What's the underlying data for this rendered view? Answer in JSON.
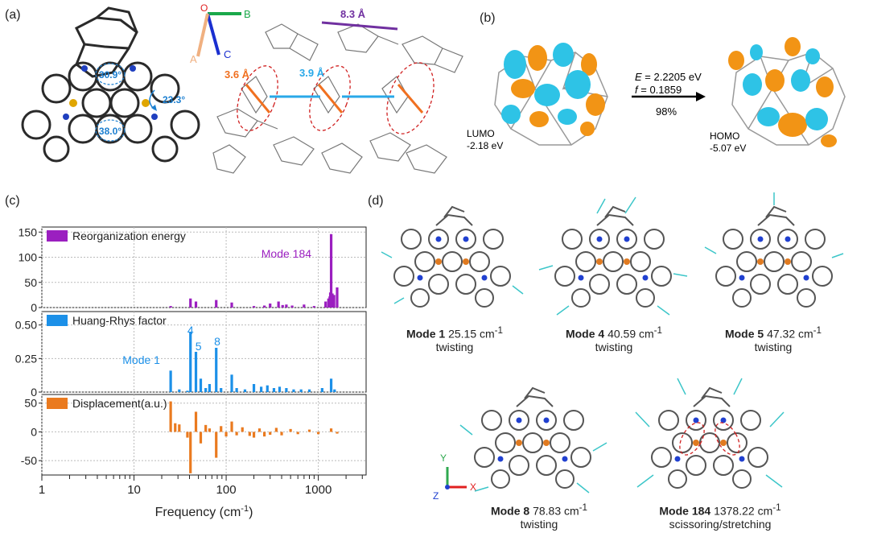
{
  "panels": {
    "a": "(a)",
    "b": "(b)",
    "c": "(c)",
    "d": "(d)"
  },
  "panel_a": {
    "angles": [
      "30.9°",
      "23.3°",
      "38.0°"
    ],
    "axes": {
      "origin": "O",
      "a": "A",
      "b": "B",
      "c": "C"
    },
    "distances": [
      "8.3 Å",
      "3.6 Å",
      "3.9 Å"
    ],
    "colors": {
      "sulfur": "#e0a600",
      "nitrogen": "#1f3fbf",
      "carbon": "#222222",
      "orange_line": "#f07020",
      "blue_line": "#29a8e8",
      "purple_line": "#7030a0"
    }
  },
  "panel_b": {
    "lumo_name": "LUMO",
    "lumo_energy": "-2.18 eV",
    "homo_name": "HOMO",
    "homo_energy": "-5.07 eV",
    "transition_E_sym": "E",
    "transition_E_val": " = 2.2205 eV",
    "transition_f_sym": "f",
    "transition_f_val": " = 0.1859",
    "transition_pct": "98%",
    "colors": {
      "lobe_a": "#f29415",
      "lobe_b": "#2ec3e6"
    }
  },
  "chart_data": {
    "type": "bar",
    "xlabel": "Frequency (cm-1)",
    "xlabel_prefix": "Frequency (cm",
    "xlabel_sup": "-1",
    "xlabel_suffix": ")",
    "xscale": "log",
    "xlim": [
      1,
      3300
    ],
    "xticks": [
      "1",
      "10",
      "100",
      "1000"
    ],
    "grid": true,
    "panels": [
      {
        "name": "Reorganization energy",
        "color": "#9b1fc0",
        "ylim": [
          0,
          160
        ],
        "yticks": [
          "0",
          "50",
          "100",
          "150"
        ],
        "annotation": "Mode 184",
        "x": [
          25,
          41,
          47,
          78,
          115,
          200,
          260,
          300,
          370,
          410,
          450,
          520,
          700,
          900,
          1200,
          1290,
          1330,
          1350,
          1378,
          1420,
          1480,
          1600
        ],
        "y": [
          3,
          18,
          12,
          15,
          10,
          3,
          4,
          8,
          12,
          5,
          6,
          4,
          6,
          3,
          12,
          18,
          22,
          30,
          146,
          28,
          25,
          40
        ]
      },
      {
        "name": "Huang-Rhys factor",
        "color": "#1c90e8",
        "ylim": [
          0,
          0.6
        ],
        "yticks": [
          "0",
          "0.25",
          "0.50"
        ],
        "annotations": [
          "Mode 1",
          "4",
          "5",
          "8"
        ],
        "x": [
          25,
          31,
          38,
          41,
          47,
          53,
          60,
          66,
          78,
          88,
          115,
          130,
          160,
          200,
          240,
          280,
          330,
          380,
          450,
          540,
          650,
          800,
          1100,
          1378,
          1500
        ],
        "y": [
          0.16,
          0.02,
          0.01,
          0.45,
          0.3,
          0.1,
          0.03,
          0.06,
          0.33,
          0.03,
          0.13,
          0.03,
          0.02,
          0.06,
          0.04,
          0.05,
          0.03,
          0.04,
          0.03,
          0.02,
          0.02,
          0.02,
          0.03,
          0.1,
          0.02
        ]
      },
      {
        "name": "Displacement(a.u.)",
        "color": "#ea7a1f",
        "ylim": [
          -75,
          65
        ],
        "yticks": [
          "-50",
          "0",
          "50"
        ],
        "x": [
          25,
          28,
          31,
          38,
          41,
          47,
          53,
          60,
          66,
          78,
          88,
          100,
          115,
          130,
          150,
          180,
          200,
          230,
          260,
          300,
          350,
          400,
          500,
          600,
          800,
          1000,
          1378,
          1600
        ],
        "y": [
          53,
          15,
          13,
          -10,
          -72,
          35,
          -20,
          12,
          6,
          -45,
          10,
          -8,
          18,
          -6,
          8,
          -7,
          -10,
          6,
          -8,
          -5,
          7,
          -6,
          5,
          -4,
          4,
          -4,
          6,
          -3
        ]
      }
    ]
  },
  "panel_d": {
    "modes": [
      {
        "label": "Mode 1",
        "freq": " 25.15 cm",
        "unit_sup": "-1",
        "type": "twisting"
      },
      {
        "label": "Mode 4",
        "freq": " 40.59 cm",
        "unit_sup": "-1",
        "type": "twisting"
      },
      {
        "label": "Mode 5",
        "freq": " 47.32 cm",
        "unit_sup": "-1",
        "type": "twisting"
      },
      {
        "label": "Mode 8",
        "freq": " 78.83 cm",
        "unit_sup": "-1",
        "type": "twisting"
      },
      {
        "label": "Mode 184",
        "freq": " 1378.22 cm",
        "unit_sup": "-1",
        "type": "scissoring/stretching"
      }
    ],
    "axes": {
      "y": "Y",
      "x": "X",
      "z": "Z"
    },
    "colors": {
      "arrow": "#3cc6c9",
      "y_axis": "#2fa84f",
      "x_axis": "#e02020",
      "z_axis": "#2040d0"
    }
  }
}
